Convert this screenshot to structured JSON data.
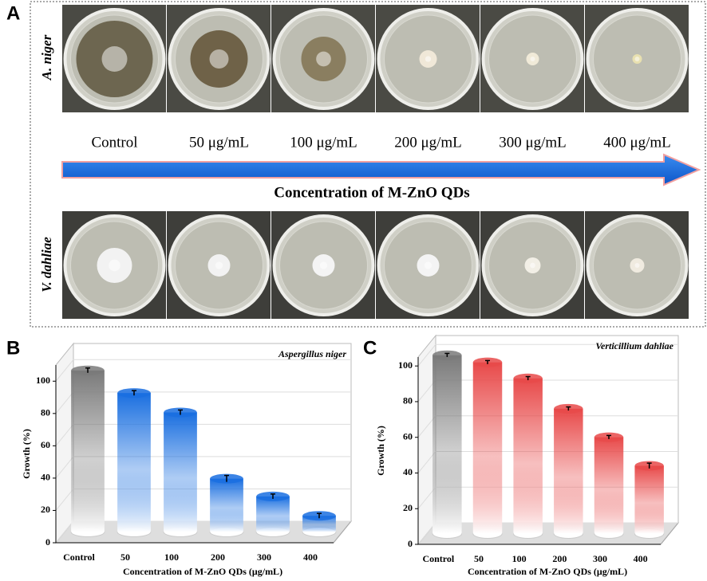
{
  "panel_a": {
    "label": "A",
    "row_labels": [
      "A. niger",
      "V. dahliae"
    ],
    "concentrations": [
      "Control",
      "50 μg/mL",
      "100 μg/mL",
      "200 μg/mL",
      "300 μg/mL",
      "400 μg/mL"
    ],
    "arrow_label": "Concentration of M-ZnO QDs"
  },
  "chart_data": [
    {
      "type": "bar",
      "panel": "B",
      "title": "Aspergillus niger",
      "y_label": "Growth (%)",
      "x_label": "Concentration of M-ZnO QDs (μg/mL)",
      "categories": [
        "Control",
        "50",
        "100",
        "200",
        "300",
        "400"
      ],
      "values": [
        100,
        86,
        74,
        33,
        22,
        10
      ],
      "errors": [
        1.5,
        1.5,
        1.5,
        2,
        1.5,
        1.5
      ],
      "colors": [
        "#7a7a7a",
        "#1a6fe0",
        "#1a6fe0",
        "#1a6fe0",
        "#1a6fe0",
        "#1a6fe0"
      ],
      "ylim": [
        0,
        110
      ],
      "yticks": [
        0,
        20,
        40,
        60,
        80,
        100
      ],
      "grid": true
    },
    {
      "type": "bar",
      "panel": "C",
      "title": "Verticillium dahliae",
      "y_label": "Growth (%)",
      "x_label": "Concentration of M-ZnO QDs (μg/mL)",
      "categories": [
        "Control",
        "50",
        "100",
        "200",
        "300",
        "400"
      ],
      "values": [
        100,
        96,
        87,
        70,
        54,
        38
      ],
      "errors": [
        1,
        1,
        1,
        1,
        1,
        1.5
      ],
      "colors": [
        "#7a7a7a",
        "#e84a4a",
        "#e84a4a",
        "#e84a4a",
        "#e84a4a",
        "#e84a4a"
      ],
      "ylim": [
        0,
        105
      ],
      "yticks": [
        0,
        20,
        40,
        60,
        80,
        100
      ],
      "grid": true
    }
  ]
}
